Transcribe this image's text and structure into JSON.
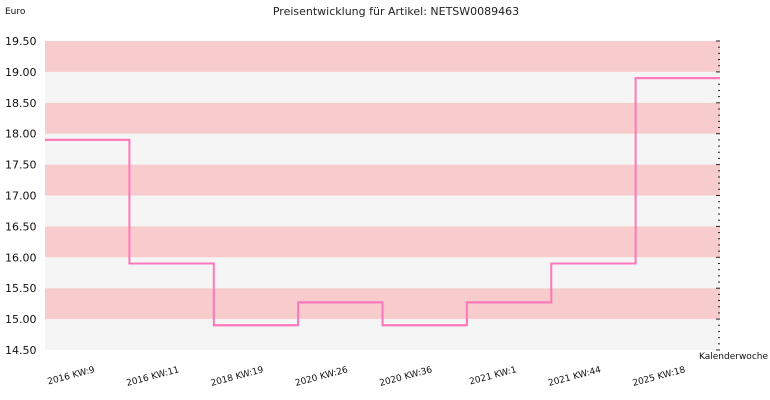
{
  "chart_data": {
    "type": "line",
    "step": true,
    "title": "Preisentwicklung für Artikel: NETSW0089463",
    "ylabel": "Euro",
    "xlabel": "Kalenderwoche",
    "ylim": [
      14.5,
      19.5
    ],
    "yticks": [
      "14.50",
      "15.00",
      "15.50",
      "16.00",
      "16.50",
      "17.00",
      "17.50",
      "18.00",
      "18.50",
      "19.00",
      "19.50"
    ],
    "categories": [
      "2016 KW:9",
      "2016 KW:11",
      "2018 KW:19",
      "2020 KW:26",
      "2020 KW:36",
      "2021 KW:1",
      "2021 KW:44",
      "2025 KW:18"
    ],
    "values": [
      17.9,
      15.9,
      14.9,
      15.27,
      14.9,
      15.27,
      15.9,
      18.9
    ],
    "grid": true,
    "colors": {
      "line": "#ff77bb",
      "band_dark": "#f8cccc",
      "band_light": "#f5f5f5"
    }
  }
}
